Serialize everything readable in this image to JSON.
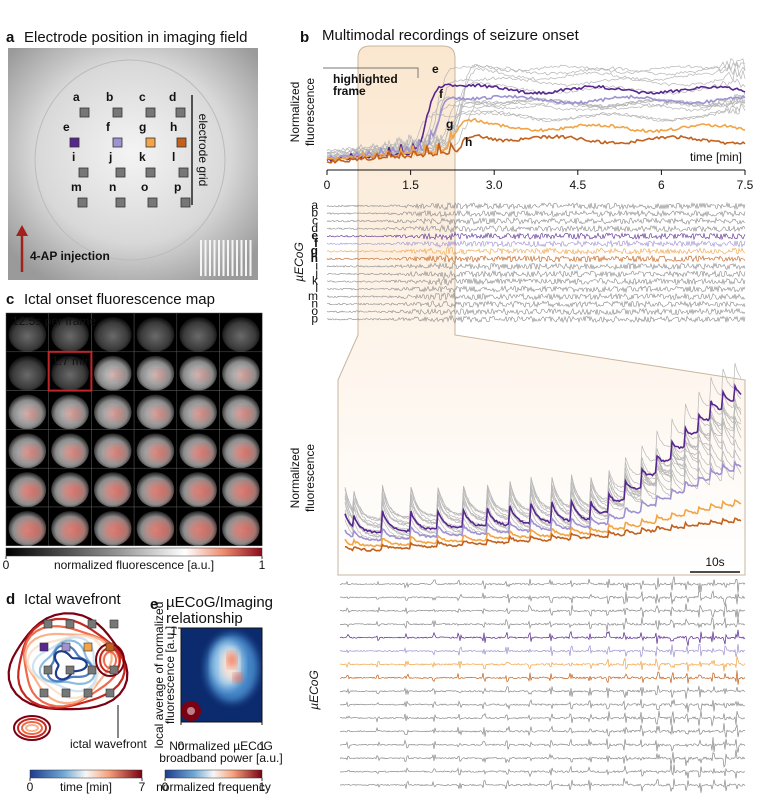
{
  "panel_a": {
    "label": "a",
    "title": "Electrode position in imaging field",
    "electrodes": [
      "a",
      "b",
      "c",
      "d",
      "e",
      "f",
      "g",
      "h",
      "i",
      "j",
      "k",
      "l",
      "m",
      "n",
      "o",
      "p"
    ],
    "grid_label": "electrode grid",
    "injection_label": "4-AP injection"
  },
  "panel_b": {
    "label": "b",
    "title": "Multimodal recordings of seizure onset",
    "highlight_label_lines": [
      "highlighted",
      "frame"
    ],
    "y_label_lines": [
      "Normalized",
      "fluorescence"
    ],
    "x_label": "time [min]",
    "xlim": [
      0,
      7.5
    ],
    "xticks": [
      0,
      1.5,
      {
        "value": 3,
        "label": "3.0"
      },
      4.5,
      6,
      7.5
    ],
    "trace_labels": [
      "e",
      "f",
      "g",
      "h"
    ],
    "highlight_colors": [
      "#57278f",
      "#9e92d0",
      "#f2a446",
      "#c2601c"
    ],
    "ecog_label": "µECoG",
    "channels": [
      "a",
      "b",
      "c",
      "d",
      "e",
      "f",
      "g",
      "h",
      "i",
      "j",
      "k",
      "l",
      "m",
      "n",
      "o",
      "p"
    ],
    "zoom_y_label_lines": [
      "Normalized",
      "fluorescence"
    ],
    "scale_bar": "10s",
    "zoom_ecog_label": "µECoG"
  },
  "panel_c": {
    "label": "c",
    "title": "Ictal onset fluorescence map",
    "frame_note": "12.5s per frame",
    "highlight_frame": "1.7 min",
    "colorbar": {
      "label": "normalized fluorescence [a.u.]",
      "lim": [
        0,
        1
      ],
      "ticks": [
        0,
        1
      ]
    }
  },
  "panel_d": {
    "label": "d",
    "title": "Ictal wavefront",
    "annotation": "ictal wavefront",
    "colorbar": {
      "label": "time [min]",
      "lim": [
        0,
        7
      ],
      "ticks": [
        0,
        7
      ]
    }
  },
  "panel_e": {
    "label": "e",
    "title_lines": [
      "µECoG/Imaging",
      "relationship"
    ],
    "y_label_lines": [
      "local average of normalized",
      "fluorescence [a.u.]"
    ],
    "x_label_lines": [
      "Normalized µECoG",
      "broadband power [a.u.]"
    ],
    "lim": [
      0,
      1
    ],
    "xticks": [
      0,
      1
    ],
    "yticks": [
      1
    ],
    "colorbar": {
      "label": "normalized frequency",
      "lim": [
        0,
        1
      ],
      "ticks": [
        0,
        1
      ]
    }
  }
}
